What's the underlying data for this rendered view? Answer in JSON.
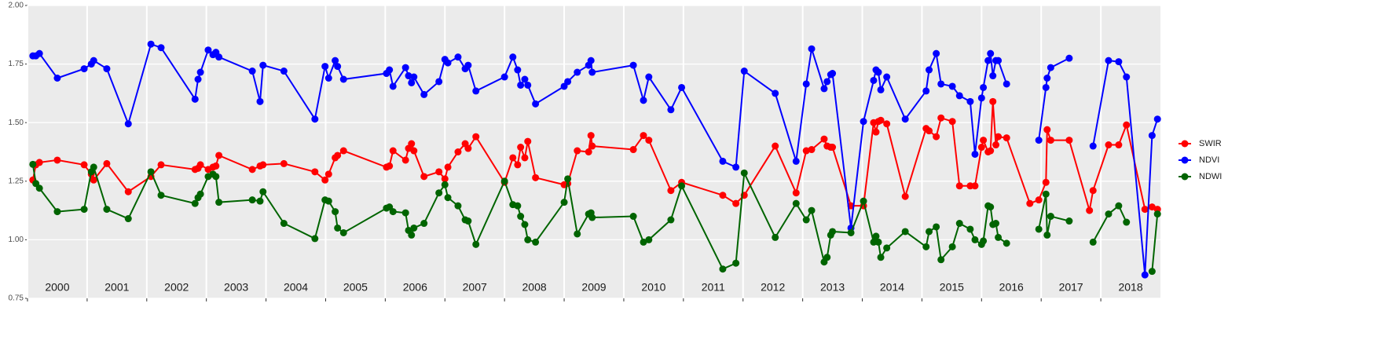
{
  "chart_data": {
    "type": "line",
    "x": [
      2000.09,
      2000.14,
      2000.2,
      2000.5,
      2000.95,
      2001.07,
      2001.11,
      2001.33,
      2001.69,
      2002.07,
      2002.24,
      2002.81,
      2002.86,
      2002.9,
      2003.03,
      2003.11,
      2003.16,
      2003.21,
      2003.77,
      2003.9,
      2003.95,
      2004.3,
      2004.82,
      2004.99,
      2005.05,
      2005.16,
      2005.2,
      2005.3,
      2006.02,
      2006.07,
      2006.13,
      2006.34,
      2006.39,
      2006.44,
      2006.48,
      2006.65,
      2006.9,
      2007.0,
      2007.05,
      2007.22,
      2007.34,
      2007.39,
      2007.52,
      2008.0,
      2008.14,
      2008.22,
      2008.27,
      2008.34,
      2008.39,
      2008.52,
      2009.0,
      2009.06,
      2009.22,
      2009.41,
      2009.45,
      2009.47,
      2010.16,
      2010.33,
      2010.42,
      2010.79,
      2010.97,
      2011.66,
      2011.88,
      2012.02,
      2012.54,
      2012.89,
      2013.06,
      2013.15,
      2013.36,
      2013.41,
      2013.47,
      2013.5,
      2013.81,
      2014.02,
      2014.19,
      2014.23,
      2014.27,
      2014.31,
      2014.41,
      2014.72,
      2015.07,
      2015.12,
      2015.24,
      2015.32,
      2015.51,
      2015.63,
      2015.81,
      2015.89,
      2016.0,
      2016.03,
      2016.11,
      2016.15,
      2016.19,
      2016.24,
      2016.28,
      2016.42,
      2016.81,
      2016.96,
      2017.08,
      2017.1,
      2017.16,
      2017.47,
      2017.81,
      2017.87,
      2018.13,
      2018.3,
      2018.43,
      2018.74,
      2018.86,
      2018.95
    ],
    "series": [
      {
        "name": "SWIR",
        "color": "#ff0000",
        "values": [
          1.255,
          1.32,
          1.33,
          1.34,
          1.32,
          1.28,
          1.255,
          1.325,
          1.205,
          1.27,
          1.32,
          1.3,
          1.305,
          1.32,
          1.3,
          1.31,
          1.315,
          1.36,
          1.3,
          1.315,
          1.32,
          1.325,
          1.29,
          1.255,
          1.28,
          1.35,
          1.36,
          1.38,
          1.31,
          1.315,
          1.38,
          1.34,
          1.39,
          1.41,
          1.38,
          1.27,
          1.29,
          1.26,
          1.31,
          1.375,
          1.41,
          1.39,
          1.44,
          1.245,
          1.35,
          1.32,
          1.395,
          1.35,
          1.42,
          1.265,
          1.235,
          1.24,
          1.38,
          1.375,
          1.445,
          1.4,
          1.385,
          1.445,
          1.425,
          1.21,
          1.245,
          1.19,
          1.155,
          1.19,
          1.4,
          1.2,
          1.38,
          1.385,
          1.43,
          1.4,
          1.395,
          1.395,
          1.145,
          1.145,
          1.5,
          1.46,
          1.505,
          1.51,
          1.495,
          1.185,
          1.475,
          1.465,
          1.44,
          1.52,
          1.505,
          1.23,
          1.23,
          1.23,
          1.395,
          1.425,
          1.375,
          1.38,
          1.59,
          1.405,
          1.44,
          1.435,
          1.155,
          1.17,
          1.245,
          1.47,
          1.425,
          1.425,
          1.125,
          1.21,
          1.405,
          1.405,
          1.49,
          1.13,
          1.14,
          1.13
        ]
      },
      {
        "name": "NDVI",
        "color": "#0000ff",
        "values": [
          1.785,
          1.785,
          1.795,
          1.69,
          1.73,
          1.75,
          1.765,
          1.73,
          1.495,
          1.835,
          1.82,
          1.6,
          1.685,
          1.715,
          1.81,
          1.79,
          1.8,
          1.78,
          1.72,
          1.59,
          1.745,
          1.72,
          1.515,
          1.74,
          1.69,
          1.765,
          1.74,
          1.685,
          1.71,
          1.725,
          1.655,
          1.735,
          1.7,
          1.67,
          1.695,
          1.62,
          1.675,
          1.77,
          1.755,
          1.78,
          1.73,
          1.745,
          1.635,
          1.695,
          1.78,
          1.725,
          1.66,
          1.685,
          1.66,
          1.58,
          1.655,
          1.675,
          1.715,
          1.745,
          1.765,
          1.715,
          1.745,
          1.595,
          1.695,
          1.555,
          1.65,
          1.335,
          1.31,
          1.72,
          1.625,
          1.335,
          1.665,
          1.815,
          1.645,
          1.675,
          1.705,
          1.71,
          1.05,
          1.505,
          1.68,
          1.725,
          1.715,
          1.64,
          1.695,
          1.515,
          1.635,
          1.725,
          1.795,
          1.665,
          1.655,
          1.615,
          1.59,
          1.365,
          1.605,
          1.65,
          1.765,
          1.795,
          1.7,
          1.765,
          1.765,
          1.665,
          null,
          1.425,
          1.65,
          1.69,
          1.735,
          1.775,
          null,
          1.4,
          1.765,
          1.76,
          1.695,
          0.85,
          1.445,
          1.515
        ]
      },
      {
        "name": "NDWI",
        "color": "#006400",
        "values": [
          1.322,
          1.24,
          1.22,
          1.12,
          1.13,
          1.29,
          1.31,
          1.13,
          1.09,
          1.29,
          1.19,
          1.155,
          1.18,
          1.195,
          1.27,
          1.28,
          1.27,
          1.16,
          1.17,
          1.165,
          1.205,
          1.07,
          1.005,
          1.17,
          1.165,
          1.12,
          1.05,
          1.03,
          1.135,
          1.14,
          1.12,
          1.115,
          1.04,
          1.02,
          1.05,
          1.07,
          1.2,
          1.235,
          1.18,
          1.145,
          1.085,
          1.08,
          0.98,
          1.25,
          1.15,
          1.145,
          1.1,
          1.065,
          1.0,
          0.99,
          1.16,
          1.26,
          1.025,
          1.11,
          1.115,
          1.095,
          1.1,
          0.99,
          1.0,
          1.085,
          1.23,
          0.875,
          0.9,
          1.285,
          1.01,
          1.155,
          1.085,
          1.125,
          0.905,
          0.925,
          1.02,
          1.035,
          1.03,
          1.165,
          0.99,
          1.015,
          0.99,
          0.925,
          0.965,
          1.035,
          0.97,
          1.035,
          1.055,
          0.915,
          0.97,
          1.07,
          1.045,
          1.0,
          0.98,
          0.995,
          1.145,
          1.14,
          1.065,
          1.07,
          1.01,
          0.985,
          null,
          1.045,
          1.195,
          1.02,
          1.1,
          1.08,
          null,
          0.99,
          1.11,
          1.145,
          1.075,
          null,
          0.865,
          1.11
        ]
      }
    ],
    "xlim": [
      2000,
      2019
    ],
    "xticks": [
      {
        "value": 2000,
        "label": "2000"
      },
      {
        "value": 2001,
        "label": "2001"
      },
      {
        "value": 2002,
        "label": "2002"
      },
      {
        "value": 2003,
        "label": "2003"
      },
      {
        "value": 2004,
        "label": "2004"
      },
      {
        "value": 2005,
        "label": "2005"
      },
      {
        "value": 2006,
        "label": "2006"
      },
      {
        "value": 2007,
        "label": "2007"
      },
      {
        "value": 2008,
        "label": "2008"
      },
      {
        "value": 2009,
        "label": "2009"
      },
      {
        "value": 2010,
        "label": "2010"
      },
      {
        "value": 2011,
        "label": "2011"
      },
      {
        "value": 2012,
        "label": "2012"
      },
      {
        "value": 2013,
        "label": "2013"
      },
      {
        "value": 2014,
        "label": "2014"
      },
      {
        "value": 2015,
        "label": "2015"
      },
      {
        "value": 2016,
        "label": "2016"
      },
      {
        "value": 2017,
        "label": "2017"
      },
      {
        "value": 2018,
        "label": "2018"
      }
    ],
    "ylim": [
      0.75,
      2.0
    ],
    "yticks": [
      {
        "value": 0.75,
        "label": "0.75"
      },
      {
        "value": 1.0,
        "label": "1.00"
      },
      {
        "value": 1.25,
        "label": "1.25"
      },
      {
        "value": 1.5,
        "label": "1.50"
      },
      {
        "value": 1.75,
        "label": "1.75"
      },
      {
        "value": 2.0,
        "label": "2.00"
      }
    ],
    "grid": true,
    "legend": "right"
  }
}
